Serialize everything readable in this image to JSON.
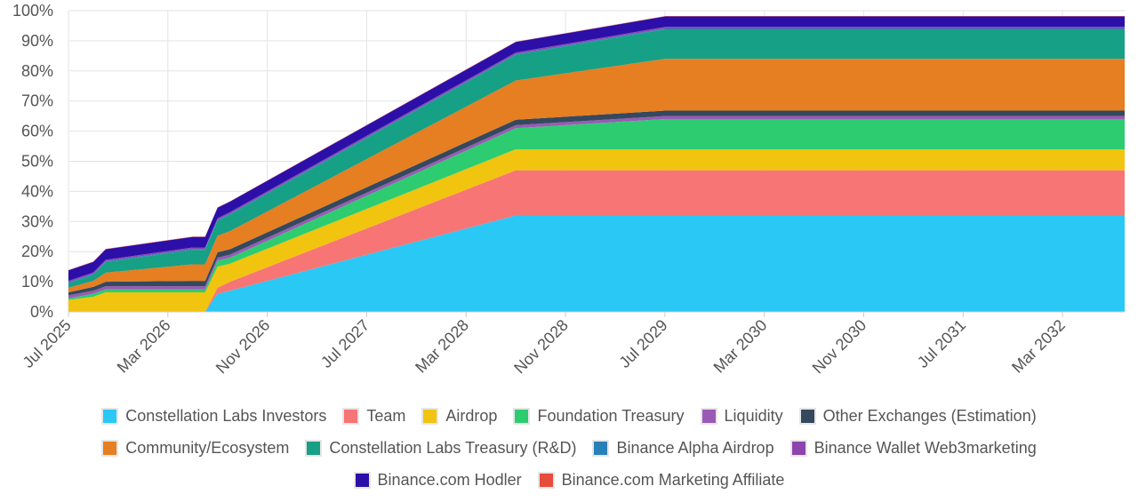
{
  "chart_data": {
    "type": "area",
    "stacked": true,
    "title": "",
    "xlabel": "",
    "ylabel": "",
    "ylim": [
      0,
      100
    ],
    "y_unit": "%",
    "y_ticks": [
      "0%",
      "10%",
      "20%",
      "30%",
      "40%",
      "50%",
      "60%",
      "70%",
      "80%",
      "90%",
      "100%"
    ],
    "x_tick_labels": [
      "Jul 2025",
      "Mar 2026",
      "Nov 2026",
      "Jul 2027",
      "Mar 2028",
      "Nov 2028",
      "Jul 2029",
      "Mar 2030",
      "Nov 2030",
      "Jul 2031",
      "Mar 2032"
    ],
    "x": [
      "2025-07",
      "2025-09",
      "2025-10",
      "2026-05",
      "2026-06",
      "2026-07",
      "2026-08",
      "2028-07",
      "2029-07",
      "2032-08"
    ],
    "grid": true,
    "legend_position": "bottom",
    "series": [
      {
        "name": "Constellation Labs Investors",
        "color": "#29c8f5",
        "values": [
          0,
          0,
          0,
          0,
          0,
          6,
          7,
          32,
          32,
          32
        ]
      },
      {
        "name": "Team",
        "color": "#f87575",
        "values": [
          0,
          0,
          0,
          0,
          0,
          2,
          3,
          15,
          15,
          15
        ]
      },
      {
        "name": "Airdrop",
        "color": "#f1c40f",
        "values": [
          4,
          5,
          6.5,
          6.5,
          6.5,
          7,
          6,
          7,
          7,
          7
        ]
      },
      {
        "name": "Foundation Treasury",
        "color": "#2ecc71",
        "values": [
          0.5,
          1,
          1,
          1,
          1,
          2,
          2,
          7,
          10,
          10
        ]
      },
      {
        "name": "Liquidity",
        "color": "#9b59b6",
        "values": [
          1,
          1,
          1,
          1,
          1,
          1,
          1,
          1,
          1,
          1
        ]
      },
      {
        "name": "Other Exchanges (Estimation)",
        "color": "#34495e",
        "values": [
          1,
          1.3,
          1.5,
          1.8,
          1.8,
          1.8,
          1.8,
          1.8,
          1.8,
          1.8
        ]
      },
      {
        "name": "Community/Ecosystem",
        "color": "#e67e22",
        "values": [
          1.5,
          2,
          3,
          5.5,
          5.5,
          5.5,
          6,
          13,
          17.2,
          17.2
        ]
      },
      {
        "name": "Constellation Labs Treasury (R&D)",
        "color": "#16a085",
        "values": [
          1.5,
          2,
          3.5,
          4.8,
          4.8,
          5,
          5.5,
          8.5,
          9.8,
          9.8
        ]
      },
      {
        "name": "Binance Alpha Airdrop",
        "color": "#2980b9",
        "values": [
          0.3,
          0.3,
          0.3,
          0.3,
          0.3,
          0.3,
          0.3,
          0.3,
          0.3,
          0.3
        ]
      },
      {
        "name": "Binance Wallet Web3marketing",
        "color": "#8e44ad",
        "values": [
          0.5,
          0.5,
          0.5,
          0.5,
          0.5,
          0.5,
          0.5,
          0.5,
          0.5,
          0.5
        ]
      },
      {
        "name": "Binance.com Hodler",
        "color": "#2b0fa8",
        "values": [
          3.5,
          3.5,
          3.5,
          3.5,
          3.5,
          3.5,
          3.5,
          3.5,
          3.5,
          3.5
        ]
      },
      {
        "name": "Binance.com Marketing Affiliate",
        "color": "#e74c3c",
        "values": [
          0.1,
          0.1,
          0.1,
          0.1,
          0.1,
          0.1,
          0.1,
          0.1,
          0.1,
          0.1
        ]
      }
    ],
    "legend_rows": [
      [
        "Constellation Labs Investors",
        "Team",
        "Airdrop",
        "Foundation Treasury",
        "Liquidity",
        "Other Exchanges (Estimation)"
      ],
      [
        "Community/Ecosystem",
        "Constellation Labs Treasury (R&D)",
        "Binance Alpha Airdrop",
        "Binance Wallet Web3marketing"
      ],
      [
        "Binance.com Hodler",
        "Binance.com Marketing Affiliate"
      ]
    ]
  }
}
